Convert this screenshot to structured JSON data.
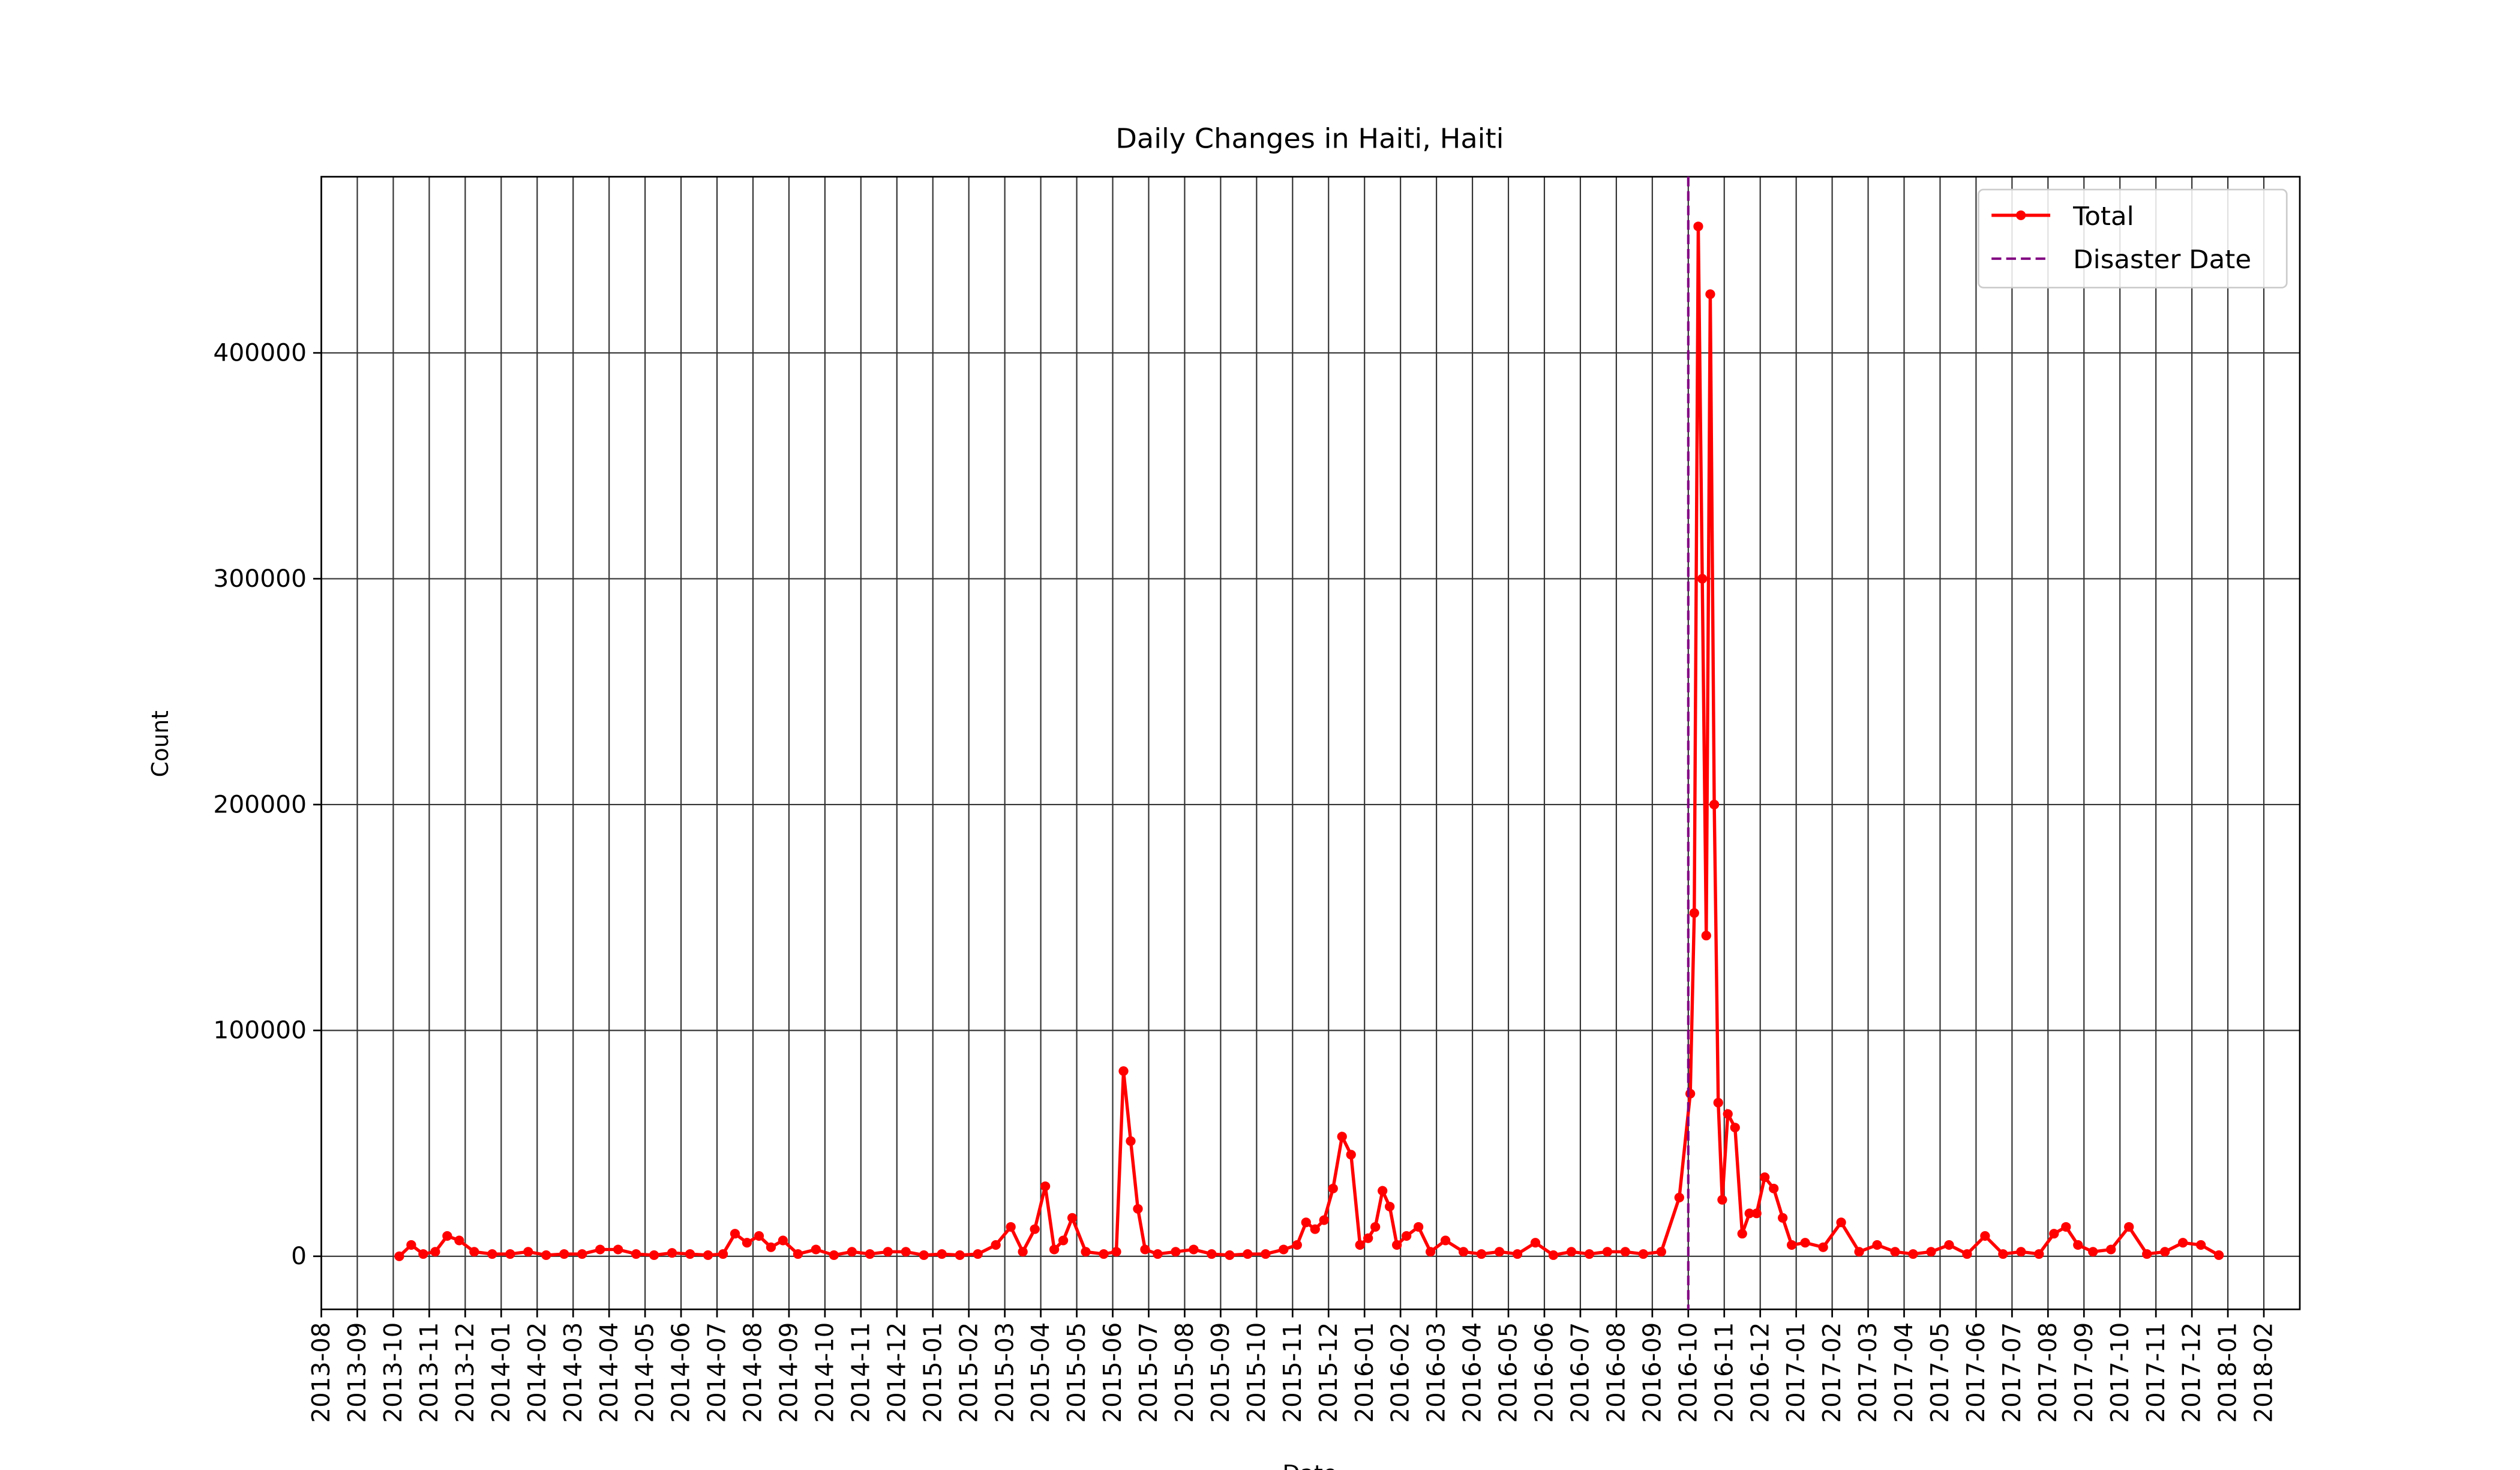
{
  "chart_data": {
    "type": "line",
    "title": "Daily Changes in Haiti, Haiti",
    "xlabel": "Date",
    "ylabel": "Count",
    "x": [
      "2013-10",
      "2013-10",
      "2013-10",
      "2013-11",
      "2013-11",
      "2013-11",
      "2013-12",
      "2013-12",
      "2014-01",
      "2014-01",
      "2014-02",
      "2014-02",
      "2014-03",
      "2014-03",
      "2014-04",
      "2014-04",
      "2014-05",
      "2014-05",
      "2014-06",
      "2014-06",
      "2014-07",
      "2014-07",
      "2014-07",
      "2014-08",
      "2014-08",
      "2014-08",
      "2014-09",
      "2014-09",
      "2014-10",
      "2014-10",
      "2014-11",
      "2014-11",
      "2014-12",
      "2014-12",
      "2015-01",
      "2015-01",
      "2015-02",
      "2015-02",
      "2015-03",
      "2015-03",
      "2015-03",
      "2015-04",
      "2015-04",
      "2015-04",
      "2015-04",
      "2015-05",
      "2015-05",
      "2015-06",
      "2015-06",
      "2015-06",
      "2015-06",
      "2015-06",
      "2015-07",
      "2015-07",
      "2015-08",
      "2015-08",
      "2015-09",
      "2015-09",
      "2015-10",
      "2015-10",
      "2015-11",
      "2015-11",
      "2015-11",
      "2015-11",
      "2015-12",
      "2015-12",
      "2015-12",
      "2015-12",
      "2016-01",
      "2016-01",
      "2016-01",
      "2016-01",
      "2016-01",
      "2016-02",
      "2016-02",
      "2016-02",
      "2016-03",
      "2016-03",
      "2016-04",
      "2016-04",
      "2016-05",
      "2016-05",
      "2016-06",
      "2016-06",
      "2016-07",
      "2016-07",
      "2016-08",
      "2016-08",
      "2016-09",
      "2016-09",
      "2016-10",
      "2016-10",
      "2016-10",
      "2016-10",
      "2016-10",
      "2016-10",
      "2016-10",
      "2016-10",
      "2016-10",
      "2016-11",
      "2016-11",
      "2016-11",
      "2016-11",
      "2016-11",
      "2016-12",
      "2016-12",
      "2016-12",
      "2016-12",
      "2017-01",
      "2017-01",
      "2017-02",
      "2017-02",
      "2017-03",
      "2017-03",
      "2017-04",
      "2017-04",
      "2017-05",
      "2017-05",
      "2017-06",
      "2017-06",
      "2017-07",
      "2017-07",
      "2017-08",
      "2017-08",
      "2017-08",
      "2017-09",
      "2017-09",
      "2017-10",
      "2017-10",
      "2017-11",
      "2017-11",
      "2017-12",
      "2017-12"
    ],
    "series": [
      {
        "name": "Total",
        "color": "#ff0000",
        "values": [
          0,
          5000,
          1000,
          2000,
          9000,
          7000,
          2000,
          1000,
          1000,
          2000,
          500,
          1000,
          1000,
          3000,
          3000,
          1000,
          500,
          1500,
          1000,
          500,
          1000,
          10000,
          6000,
          9000,
          4000,
          7000,
          1000,
          3000,
          500,
          2000,
          1000,
          2000,
          2000,
          500,
          1000,
          500,
          1000,
          5000,
          13000,
          2000,
          12000,
          31000,
          3000,
          7000,
          17000,
          2000,
          1000,
          2000,
          82000,
          51000,
          21000,
          3000,
          1000,
          2000,
          3000,
          1000,
          500,
          1000,
          1000,
          3000,
          5000,
          15000,
          12000,
          16000,
          30000,
          53000,
          45000,
          5000,
          8000,
          13000,
          29000,
          22000,
          5000,
          9000,
          13000,
          2000,
          7000,
          2000,
          1000,
          2000,
          1000,
          6000,
          500,
          2000,
          1000,
          2000,
          2000,
          1000,
          2000,
          26000,
          72000,
          152000,
          456000,
          300000,
          142000,
          426000,
          200000,
          68000,
          25000,
          63000,
          57000,
          10000,
          19000,
          19000,
          35000,
          30000,
          17000,
          5000,
          6000,
          4000,
          15000,
          2000,
          5000,
          2000,
          1000,
          2000,
          5000,
          1000,
          9000,
          1000,
          2000,
          1000,
          10000,
          13000,
          5000,
          2000,
          3000,
          13000,
          1000,
          2000,
          6000,
          5000,
          500
        ]
      }
    ],
    "disaster": {
      "name": "Disaster Date",
      "x": "2016-10",
      "color": "#800080"
    },
    "xlim": [
      "2013-08",
      "2018-03"
    ],
    "xticks": [
      "2013-08",
      "2013-09",
      "2013-10",
      "2013-11",
      "2013-12",
      "2014-01",
      "2014-02",
      "2014-03",
      "2014-04",
      "2014-05",
      "2014-06",
      "2014-07",
      "2014-08",
      "2014-09",
      "2014-10",
      "2014-11",
      "2014-12",
      "2015-01",
      "2015-02",
      "2015-03",
      "2015-04",
      "2015-05",
      "2015-06",
      "2015-07",
      "2015-08",
      "2015-09",
      "2015-10",
      "2015-11",
      "2015-12",
      "2016-01",
      "2016-02",
      "2016-03",
      "2016-04",
      "2016-05",
      "2016-06",
      "2016-07",
      "2016-08",
      "2016-09",
      "2016-10",
      "2016-11",
      "2016-12",
      "2017-01",
      "2017-02",
      "2017-03",
      "2017-04",
      "2017-05",
      "2017-06",
      "2017-07",
      "2017-08",
      "2017-09",
      "2017-10",
      "2017-11",
      "2017-12",
      "2018-01",
      "2018-02"
    ],
    "ylim": [
      -23500,
      478000
    ],
    "yticks": [
      0,
      100000,
      200000,
      300000,
      400000
    ],
    "grid": true,
    "legend": "upper right"
  }
}
